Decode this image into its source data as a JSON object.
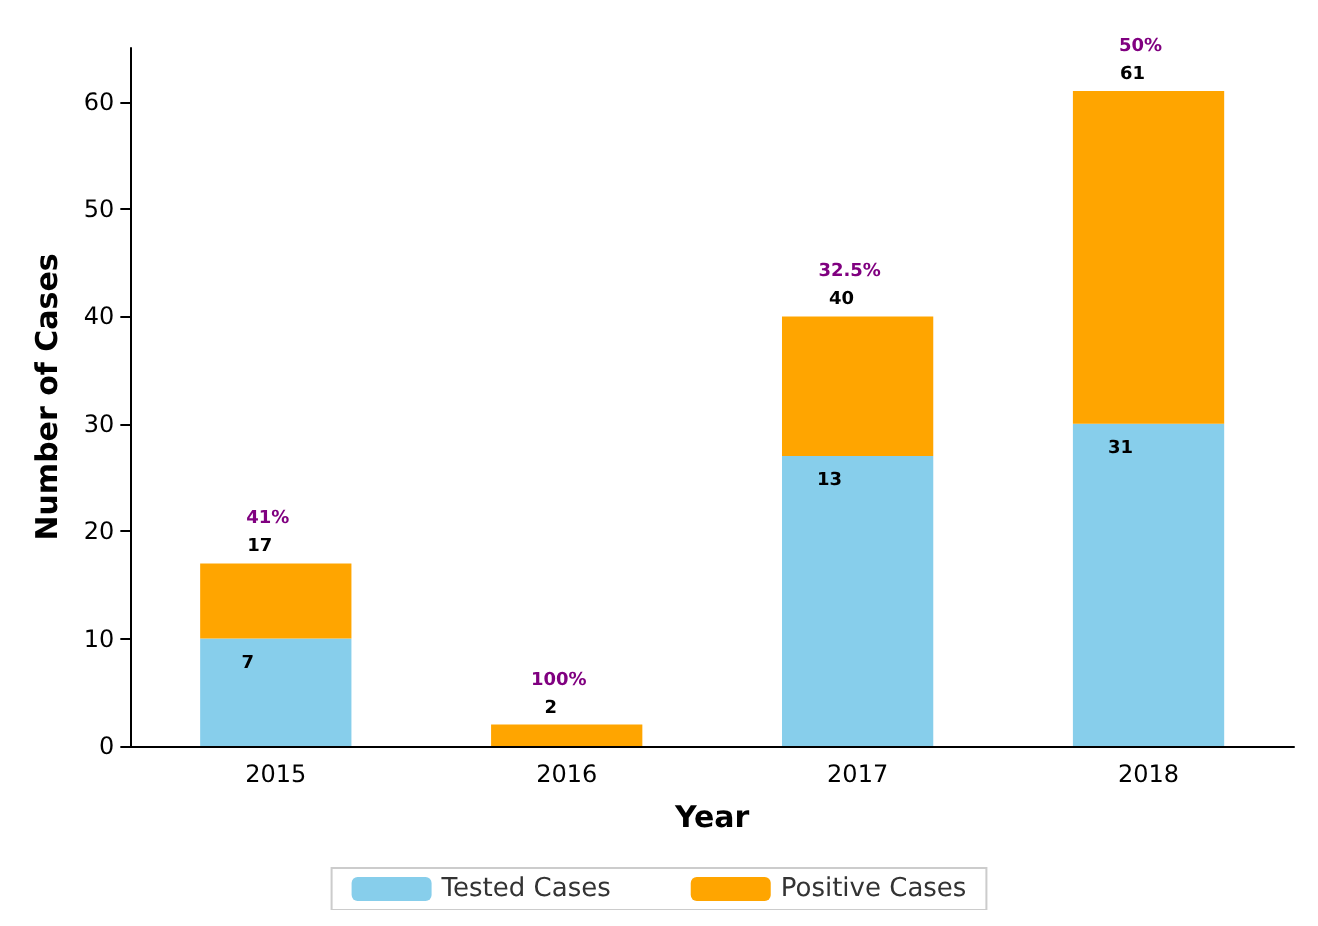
{
  "chart_data": {
    "type": "bar",
    "stacked": true,
    "xlabel": "Year",
    "ylabel": "Number of Cases",
    "categories": [
      "2015",
      "2016",
      "2017",
      "2018"
    ],
    "series": [
      {
        "name": "Tested Cases",
        "color": "#87ceeb",
        "values": [
          10,
          0,
          27,
          30
        ]
      },
      {
        "name": "Positive Cases",
        "color": "#ffa500",
        "values": [
          7,
          2,
          13,
          31
        ],
        "value_labels": [
          "7",
          null,
          "13",
          "31"
        ]
      }
    ],
    "totals": [
      "17",
      "2",
      "40",
      "61"
    ],
    "annotations": [
      {
        "text": "41%",
        "x": "2015",
        "y": 17
      },
      {
        "text": "100%",
        "x": "2016",
        "y": 2
      },
      {
        "text": "32.5%",
        "x": "2017",
        "y": 40
      },
      {
        "text": "50%",
        "x": "2018",
        "y": 61
      }
    ],
    "ylim": [
      0,
      65
    ],
    "yticks": [
      0,
      10,
      20,
      30,
      40,
      50,
      60
    ],
    "grid": false,
    "legend": "bottom"
  }
}
